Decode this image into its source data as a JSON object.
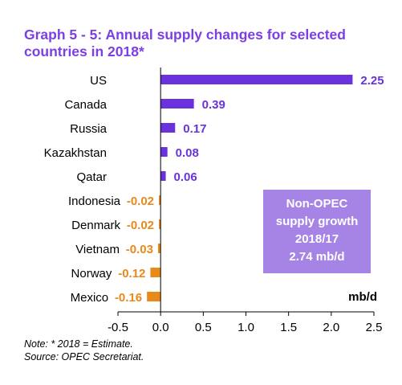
{
  "title": "Graph 5 - 5: Annual supply changes for selected countries in 2018*",
  "notes": {
    "note": "Note: * 2018 = Estimate.",
    "source": "Source: OPEC Secretariat."
  },
  "unit_label": "mb/d",
  "callout": {
    "lines": [
      "Non-OPEC",
      "supply growth",
      "2018/17",
      "2.74 mb/d"
    ],
    "color": "#a684e6"
  },
  "colors": {
    "positive": "#6a32dc",
    "negative": "#e8891a"
  },
  "chart_data": {
    "type": "bar",
    "orientation": "horizontal",
    "title": "Graph 5 - 5: Annual supply changes for selected countries in 2018*",
    "xlabel": "mb/d",
    "ylabel": "",
    "categories": [
      "US",
      "Canada",
      "Russia",
      "Kazakhstan",
      "Qatar",
      "Indonesia",
      "Denmark",
      "Vietnam",
      "Norway",
      "Mexico"
    ],
    "values": [
      2.25,
      0.39,
      0.17,
      0.08,
      0.06,
      -0.02,
      -0.02,
      -0.03,
      -0.12,
      -0.16
    ],
    "value_labels": [
      "2.25",
      "0.39",
      "0.17",
      "0.08",
      "0.06",
      "-0.02",
      "-0.02",
      "-0.03",
      "-0.12",
      "-0.16"
    ],
    "xlim": [
      -0.5,
      2.5
    ],
    "xticks": [
      -0.5,
      0,
      0.5,
      1,
      1.5,
      2,
      2.5
    ],
    "xtick_labels": [
      "-0.5",
      "0.0",
      "0.5",
      "1.0",
      "1.5",
      "2.0",
      "2.5"
    ],
    "grid": false,
    "legend": "none"
  }
}
